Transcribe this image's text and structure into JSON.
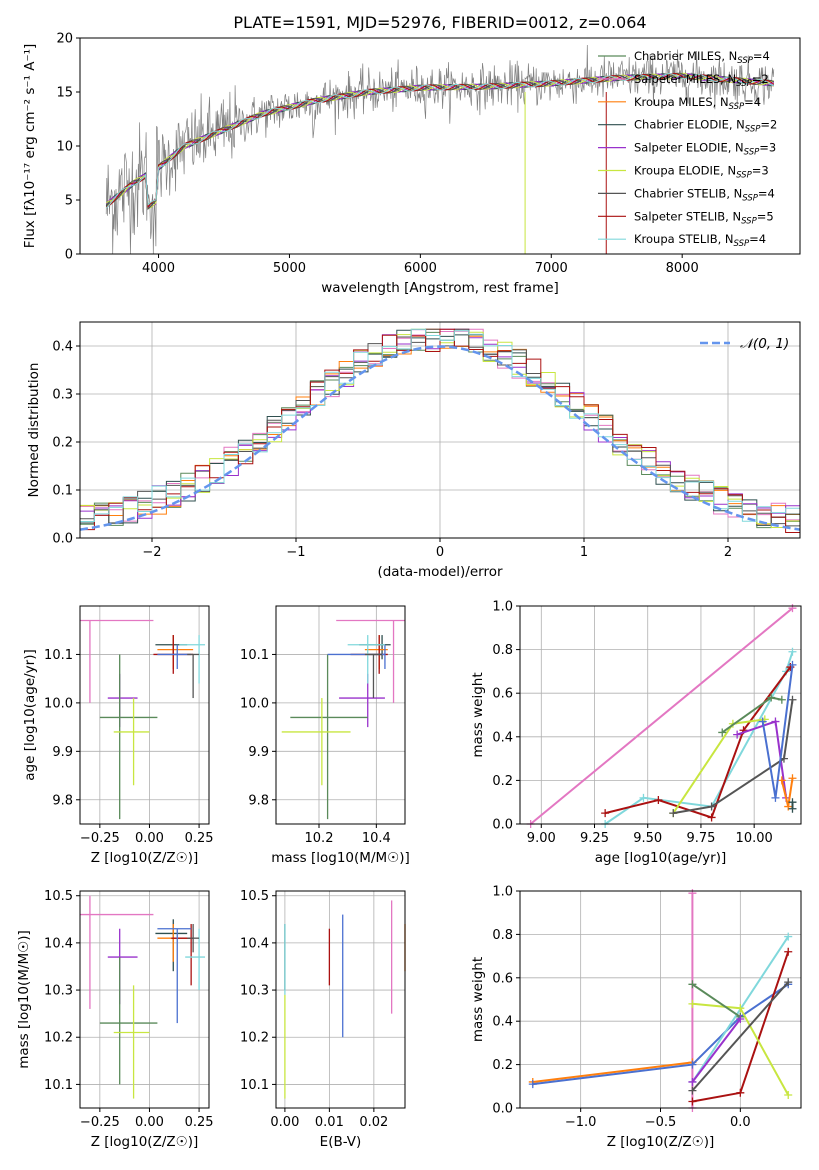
{
  "figure_title": "PLATE=1591, MJD=52976, FIBERID=0012, z=0.064",
  "colors": {
    "data": "#808080",
    "Chabrier MILES": "#5a8a5a",
    "Salpeter MILES": "#e377c2",
    "Kroupa MILES": "#ff7f0e",
    "Chabrier ELODIE": "#2f4f4f",
    "Salpeter ELODIE": "#9932cc",
    "Kroupa ELODIE": "#c8e640",
    "Chabrier STELIB": "#555555",
    "Salpeter STELIB": "#aa1111",
    "Kroupa STELIB": "#80d8dc",
    "blue": "#4a70d0",
    "gauss": "#6495ed"
  },
  "chart_data": [
    {
      "id": "spectrum",
      "type": "line",
      "title": "PLATE=1591, MJD=52976, FIBERID=0012, z=0.064",
      "xlabel": "wavelength [Angstrom, rest frame]",
      "ylabel": "Flux [fλ10⁻¹⁷ erg cm⁻² s⁻¹ A⁻¹]",
      "xlim": [
        3400,
        8900
      ],
      "ylim": [
        0,
        20
      ],
      "xticks": [
        4000,
        5000,
        6000,
        7000,
        8000
      ],
      "yticks": [
        0,
        5,
        10,
        15,
        20
      ],
      "continuum": [
        [
          3600,
          4.5
        ],
        [
          3800,
          6.5
        ],
        [
          4000,
          8.0
        ],
        [
          4200,
          10.0
        ],
        [
          4500,
          11.5
        ],
        [
          4800,
          13.0
        ],
        [
          5200,
          14.2
        ],
        [
          5600,
          15.0
        ],
        [
          6000,
          15.4
        ],
        [
          6500,
          15.5
        ],
        [
          7000,
          15.8
        ],
        [
          7500,
          16.3
        ],
        [
          8000,
          16.5
        ],
        [
          8500,
          16.0
        ],
        [
          8700,
          15.8
        ]
      ],
      "legend": [
        {
          "name": "Chabrier MILES",
          "nssp": "=4"
        },
        {
          "name": "Salpeter MILES",
          "nssp": "=2"
        },
        {
          "name": "Kroupa MILES",
          "nssp": "=4"
        },
        {
          "name": "Chabrier ELODIE",
          "nssp": "=2"
        },
        {
          "name": "Salpeter ELODIE",
          "nssp": "=3"
        },
        {
          "name": "Kroupa ELODIE",
          "nssp": "=3"
        },
        {
          "name": "Chabrier STELIB",
          "nssp": "=4"
        },
        {
          "name": "Salpeter STELIB",
          "nssp": "=5"
        },
        {
          "name": "Kroupa STELIB",
          "nssp": "=4"
        }
      ],
      "legend_placement": "upper-right",
      "grid": false
    },
    {
      "id": "residuals",
      "type": "histogram",
      "xlabel": "(data-model)/error",
      "ylabel": "Normed distribution",
      "xlim": [
        -2.5,
        2.5
      ],
      "ylim": [
        0,
        0.45
      ],
      "xticks": [
        -2,
        -1,
        0,
        1,
        2
      ],
      "yticks": [
        0.0,
        0.1,
        0.2,
        0.3,
        0.4
      ],
      "bin_width": 0.1,
      "gaussian_label": "𝒩(0, 1)",
      "legend_placement": "upper-right",
      "grid": true
    },
    {
      "id": "age_vs_Z",
      "type": "errorbar",
      "xlabel": "Z [log10(Z/Z☉)]",
      "ylabel": "age [log10(age/yr)]",
      "xlim": [
        -0.35,
        0.3
      ],
      "ylim": [
        9.75,
        10.2
      ],
      "xticks": [
        -0.25,
        0.0,
        0.25
      ],
      "yticks": [
        9.8,
        9.9,
        10.0,
        10.1
      ],
      "points": [
        {
          "model": "Salpeter MILES",
          "x": -0.3,
          "y": 10.17,
          "xerr": [
            0.05,
            0.32
          ],
          "yerr": [
            0.17,
            0.0
          ]
        },
        {
          "model": "Salpeter ELODIE",
          "x": -0.15,
          "y": 10.01,
          "xerr": [
            0.06,
            0.09
          ],
          "yerr": [
            0.06,
            0.05
          ]
        },
        {
          "model": "Chabrier MILES",
          "x": -0.15,
          "y": 9.97,
          "xerr": [
            0.1,
            0.19
          ],
          "yerr": [
            0.21,
            0.13
          ]
        },
        {
          "model": "Kroupa ELODIE",
          "x": -0.08,
          "y": 9.94,
          "xerr": [
            0.1,
            0.08
          ],
          "yerr": [
            0.11,
            0.07
          ]
        },
        {
          "model": "Chabrier ELODIE",
          "x": 0.12,
          "y": 10.12,
          "xerr": [
            0.09,
            0.07
          ],
          "yerr": [
            0.03,
            0.02
          ]
        },
        {
          "model": "Kroupa MILES",
          "x": 0.12,
          "y": 10.11,
          "xerr": [
            0.08,
            0.1
          ],
          "yerr": [
            0.04,
            0.03
          ]
        },
        {
          "model": "Salpeter STELIB",
          "x": 0.12,
          "y": 10.1,
          "xerr": [
            0.1,
            0.1
          ],
          "yerr": [
            0.04,
            0.04
          ]
        },
        {
          "model": "blue",
          "x": 0.14,
          "y": 10.1,
          "xerr": [
            0.1,
            0.07
          ],
          "yerr": [
            0.03,
            0.02
          ]
        },
        {
          "model": "Kroupa STELIB",
          "x": 0.25,
          "y": 10.12,
          "xerr": [
            0.1,
            0.03
          ],
          "yerr": [
            0.08,
            0.02
          ]
        },
        {
          "model": "Chabrier STELIB",
          "x": 0.22,
          "y": 10.1,
          "xerr": [
            0.03,
            0.03
          ],
          "yerr": [
            0.09,
            0.0
          ]
        }
      ],
      "grid": true
    },
    {
      "id": "age_vs_mass",
      "type": "errorbar",
      "xlabel": "mass [log10(M/M☉)]",
      "ylabel": "",
      "xlim": [
        10.05,
        10.5
      ],
      "ylim": [
        9.75,
        10.2
      ],
      "xticks": [
        10.2,
        10.4
      ],
      "yticks": [
        9.8,
        9.9,
        10.0,
        10.1
      ],
      "points": [
        {
          "model": "Salpeter MILES",
          "x": 10.46,
          "y": 10.17,
          "xerr": [
            0.2,
            0.04
          ],
          "yerr": [
            0.17,
            0.0
          ]
        },
        {
          "model": "Salpeter ELODIE",
          "x": 10.37,
          "y": 10.01,
          "xerr": [
            0.1,
            0.06
          ],
          "yerr": [
            0.06,
            0.05
          ]
        },
        {
          "model": "Chabrier MILES",
          "x": 10.23,
          "y": 9.97,
          "xerr": [
            0.13,
            0.14
          ],
          "yerr": [
            0.21,
            0.13
          ]
        },
        {
          "model": "Kroupa ELODIE",
          "x": 10.21,
          "y": 9.94,
          "xerr": [
            0.14,
            0.1
          ],
          "yerr": [
            0.11,
            0.07
          ]
        },
        {
          "model": "Chabrier ELODIE",
          "x": 10.42,
          "y": 10.12,
          "xerr": [
            0.08,
            0.03
          ],
          "yerr": [
            0.03,
            0.02
          ]
        },
        {
          "model": "Kroupa MILES",
          "x": 10.41,
          "y": 10.11,
          "xerr": [
            0.05,
            0.03
          ],
          "yerr": [
            0.04,
            0.03
          ]
        },
        {
          "model": "Salpeter STELIB",
          "x": 10.41,
          "y": 10.1,
          "xerr": [
            0.1,
            0.03
          ],
          "yerr": [
            0.04,
            0.04
          ]
        },
        {
          "model": "blue",
          "x": 10.43,
          "y": 10.1,
          "xerr": [
            0.2,
            0.0
          ],
          "yerr": [
            0.03,
            0.02
          ]
        },
        {
          "model": "Kroupa STELIB",
          "x": 10.37,
          "y": 10.12,
          "xerr": [
            0.07,
            0.06
          ],
          "yerr": [
            0.08,
            0.02
          ]
        },
        {
          "model": "Chabrier STELIB",
          "x": 10.39,
          "y": 10.1,
          "xerr": [
            0.03,
            0.03
          ],
          "yerr": [
            0.09,
            0.0
          ]
        }
      ],
      "grid": true
    },
    {
      "id": "mass_vs_Z",
      "type": "errorbar",
      "xlabel": "Z [log10(Z/Z☉)]",
      "ylabel": "mass [log10(M/M☉)]",
      "xlim": [
        -0.35,
        0.3
      ],
      "ylim": [
        10.05,
        10.51
      ],
      "xticks": [
        -0.25,
        0.0,
        0.25
      ],
      "yticks": [
        10.1,
        10.2,
        10.3,
        10.4,
        10.5
      ],
      "points": [
        {
          "model": "Salpeter MILES",
          "x": -0.3,
          "y": 10.46,
          "xerr": [
            0.05,
            0.32
          ],
          "yerr": [
            0.2,
            0.04
          ]
        },
        {
          "model": "Salpeter ELODIE",
          "x": -0.15,
          "y": 10.37,
          "xerr": [
            0.06,
            0.09
          ],
          "yerr": [
            0.1,
            0.06
          ]
        },
        {
          "model": "Chabrier MILES",
          "x": -0.15,
          "y": 10.23,
          "xerr": [
            0.1,
            0.19
          ],
          "yerr": [
            0.13,
            0.14
          ]
        },
        {
          "model": "Kroupa ELODIE",
          "x": -0.08,
          "y": 10.21,
          "xerr": [
            0.1,
            0.08
          ],
          "yerr": [
            0.14,
            0.1
          ]
        },
        {
          "model": "Chabrier ELODIE",
          "x": 0.12,
          "y": 10.42,
          "xerr": [
            0.09,
            0.07
          ],
          "yerr": [
            0.08,
            0.03
          ]
        },
        {
          "model": "Kroupa MILES",
          "x": 0.12,
          "y": 10.41,
          "xerr": [
            0.08,
            0.1
          ],
          "yerr": [
            0.05,
            0.03
          ]
        },
        {
          "model": "Salpeter STELIB",
          "x": 0.21,
          "y": 10.41,
          "xerr": [
            0.1,
            0.01
          ],
          "yerr": [
            0.1,
            0.03
          ]
        },
        {
          "model": "blue",
          "x": 0.14,
          "y": 10.43,
          "xerr": [
            0.1,
            0.07
          ],
          "yerr": [
            0.2,
            0.0
          ]
        },
        {
          "model": "Kroupa STELIB",
          "x": 0.25,
          "y": 10.37,
          "xerr": [
            0.07,
            0.03
          ],
          "yerr": [
            0.07,
            0.06
          ]
        },
        {
          "model": "Chabrier STELIB",
          "x": 0.22,
          "y": 10.41,
          "xerr": [
            0.03,
            0.03
          ],
          "yerr": [
            0.03,
            0.03
          ]
        }
      ],
      "grid": true
    },
    {
      "id": "mass_vs_ebv",
      "type": "errorbar",
      "xlabel": "E(B-V)",
      "ylabel": "",
      "xlim": [
        -0.002,
        0.027
      ],
      "ylim": [
        10.05,
        10.51
      ],
      "xticks": [
        0.0,
        0.01,
        0.02
      ],
      "yticks": [
        10.1,
        10.2,
        10.3,
        10.4,
        10.5
      ],
      "points": [
        {
          "model": "Chabrier STELIB",
          "x": 0.0,
          "y": 10.39,
          "yerr": [
            0.09,
            0.05
          ]
        },
        {
          "model": "Kroupa ELODIE",
          "x": 0.0,
          "y": 10.2,
          "yerr": [
            0.13,
            0.09
          ]
        },
        {
          "model": "Kroupa STELIB",
          "x": 0.0,
          "y": 10.35,
          "yerr": [
            0.06,
            0.09
          ]
        },
        {
          "model": "Salpeter STELIB",
          "x": 0.01,
          "y": 10.37,
          "yerr": [
            0.06,
            0.06
          ]
        },
        {
          "model": "blue",
          "x": 0.013,
          "y": 10.33,
          "yerr": [
            0.13,
            0.13
          ]
        },
        {
          "model": "Salpeter MILES",
          "x": 0.024,
          "y": 10.37,
          "yerr": [
            0.12,
            0.12
          ]
        },
        {
          "model": "Kroupa MILES",
          "x": 0.027,
          "y": 10.39,
          "yerr": [
            0.05,
            0.05
          ]
        }
      ],
      "grid": true
    },
    {
      "id": "weight_vs_age",
      "type": "line",
      "xlabel": "age [log10(age/yr)]",
      "ylabel": "mass weight",
      "xlim": [
        8.9,
        10.22
      ],
      "ylim": [
        0,
        1.0
      ],
      "xticks": [
        9.0,
        9.25,
        9.5,
        9.75,
        10.0
      ],
      "yticks": [
        0.0,
        0.2,
        0.4,
        0.6,
        0.8,
        1.0
      ],
      "series": [
        {
          "model": "Salpeter MILES",
          "x": [
            8.95,
            10.18
          ],
          "y": [
            0.0,
            0.99
          ]
        },
        {
          "model": "Kroupa STELIB",
          "x": [
            9.3,
            9.48,
            9.8,
            10.15,
            10.18
          ],
          "y": [
            0.0,
            0.12,
            0.08,
            0.7,
            0.79
          ]
        },
        {
          "model": "Salpeter STELIB",
          "x": [
            9.3,
            9.55,
            9.8,
            9.95,
            10.17
          ],
          "y": [
            0.05,
            0.11,
            0.03,
            0.43,
            0.72
          ]
        },
        {
          "model": "Kroupa ELODIE",
          "x": [
            9.62,
            9.9,
            10.05
          ],
          "y": [
            0.05,
            0.46,
            0.48
          ]
        },
        {
          "model": "Chabrier MILES",
          "x": [
            9.85,
            10.08,
            10.13
          ],
          "y": [
            0.42,
            0.58,
            0.57
          ]
        },
        {
          "model": "Salpeter ELODIE",
          "x": [
            9.92,
            10.1,
            10.15
          ],
          "y": [
            0.41,
            0.47,
            0.12
          ]
        },
        {
          "model": "Chabrier STELIB",
          "x": [
            9.62,
            9.8,
            10.14,
            10.18
          ],
          "y": [
            0.05,
            0.08,
            0.3,
            0.57
          ]
        },
        {
          "model": "Kroupa MILES",
          "x": [
            10.13,
            10.16,
            10.18
          ],
          "y": [
            0.2,
            0.08,
            0.21
          ]
        },
        {
          "model": "blue",
          "x": [
            10.04,
            10.1,
            10.18
          ],
          "y": [
            0.47,
            0.12,
            0.73
          ]
        },
        {
          "model": "Chabrier ELODIE",
          "x": [
            10.18,
            10.18
          ],
          "y": [
            0.1,
            0.07
          ]
        }
      ],
      "grid": true
    },
    {
      "id": "weight_vs_Z",
      "type": "line",
      "xlabel": "Z [log10(Z/Z☉)]",
      "ylabel": "mass weight",
      "xlim": [
        -1.38,
        0.38
      ],
      "ylim": [
        0,
        1.0
      ],
      "xticks": [
        -1.0,
        -0.5,
        0.0
      ],
      "yticks": [
        0.0,
        0.2,
        0.4,
        0.6,
        0.8,
        1.0
      ],
      "series": [
        {
          "model": "Salpeter MILES",
          "x": [
            -0.3,
            -0.3
          ],
          "y": [
            0.0,
            0.99
          ]
        },
        {
          "model": "Kroupa MILES",
          "x": [
            -1.3,
            -0.3
          ],
          "y": [
            0.12,
            0.21
          ]
        },
        {
          "model": "blue",
          "x": [
            -1.3,
            -0.3,
            0.0,
            0.3
          ],
          "y": [
            0.11,
            0.2,
            0.42,
            0.57
          ]
        },
        {
          "model": "Kroupa STELIB",
          "x": [
            -0.3,
            0.3
          ],
          "y": [
            0.12,
            0.79
          ]
        },
        {
          "model": "Salpeter STELIB",
          "x": [
            -0.3,
            0.0,
            0.3
          ],
          "y": [
            0.03,
            0.07,
            0.72
          ]
        },
        {
          "model": "Kroupa ELODIE",
          "x": [
            -0.3,
            0.0,
            0.3
          ],
          "y": [
            0.48,
            0.46,
            0.06
          ]
        },
        {
          "model": "Chabrier MILES",
          "x": [
            -0.3,
            0.0
          ],
          "y": [
            0.57,
            0.42
          ]
        },
        {
          "model": "Salpeter ELODIE",
          "x": [
            -0.3,
            0.0
          ],
          "y": [
            0.12,
            0.41
          ]
        },
        {
          "model": "Chabrier STELIB",
          "x": [
            -0.3,
            0.3
          ],
          "y": [
            0.08,
            0.58
          ]
        }
      ],
      "grid": true
    }
  ]
}
